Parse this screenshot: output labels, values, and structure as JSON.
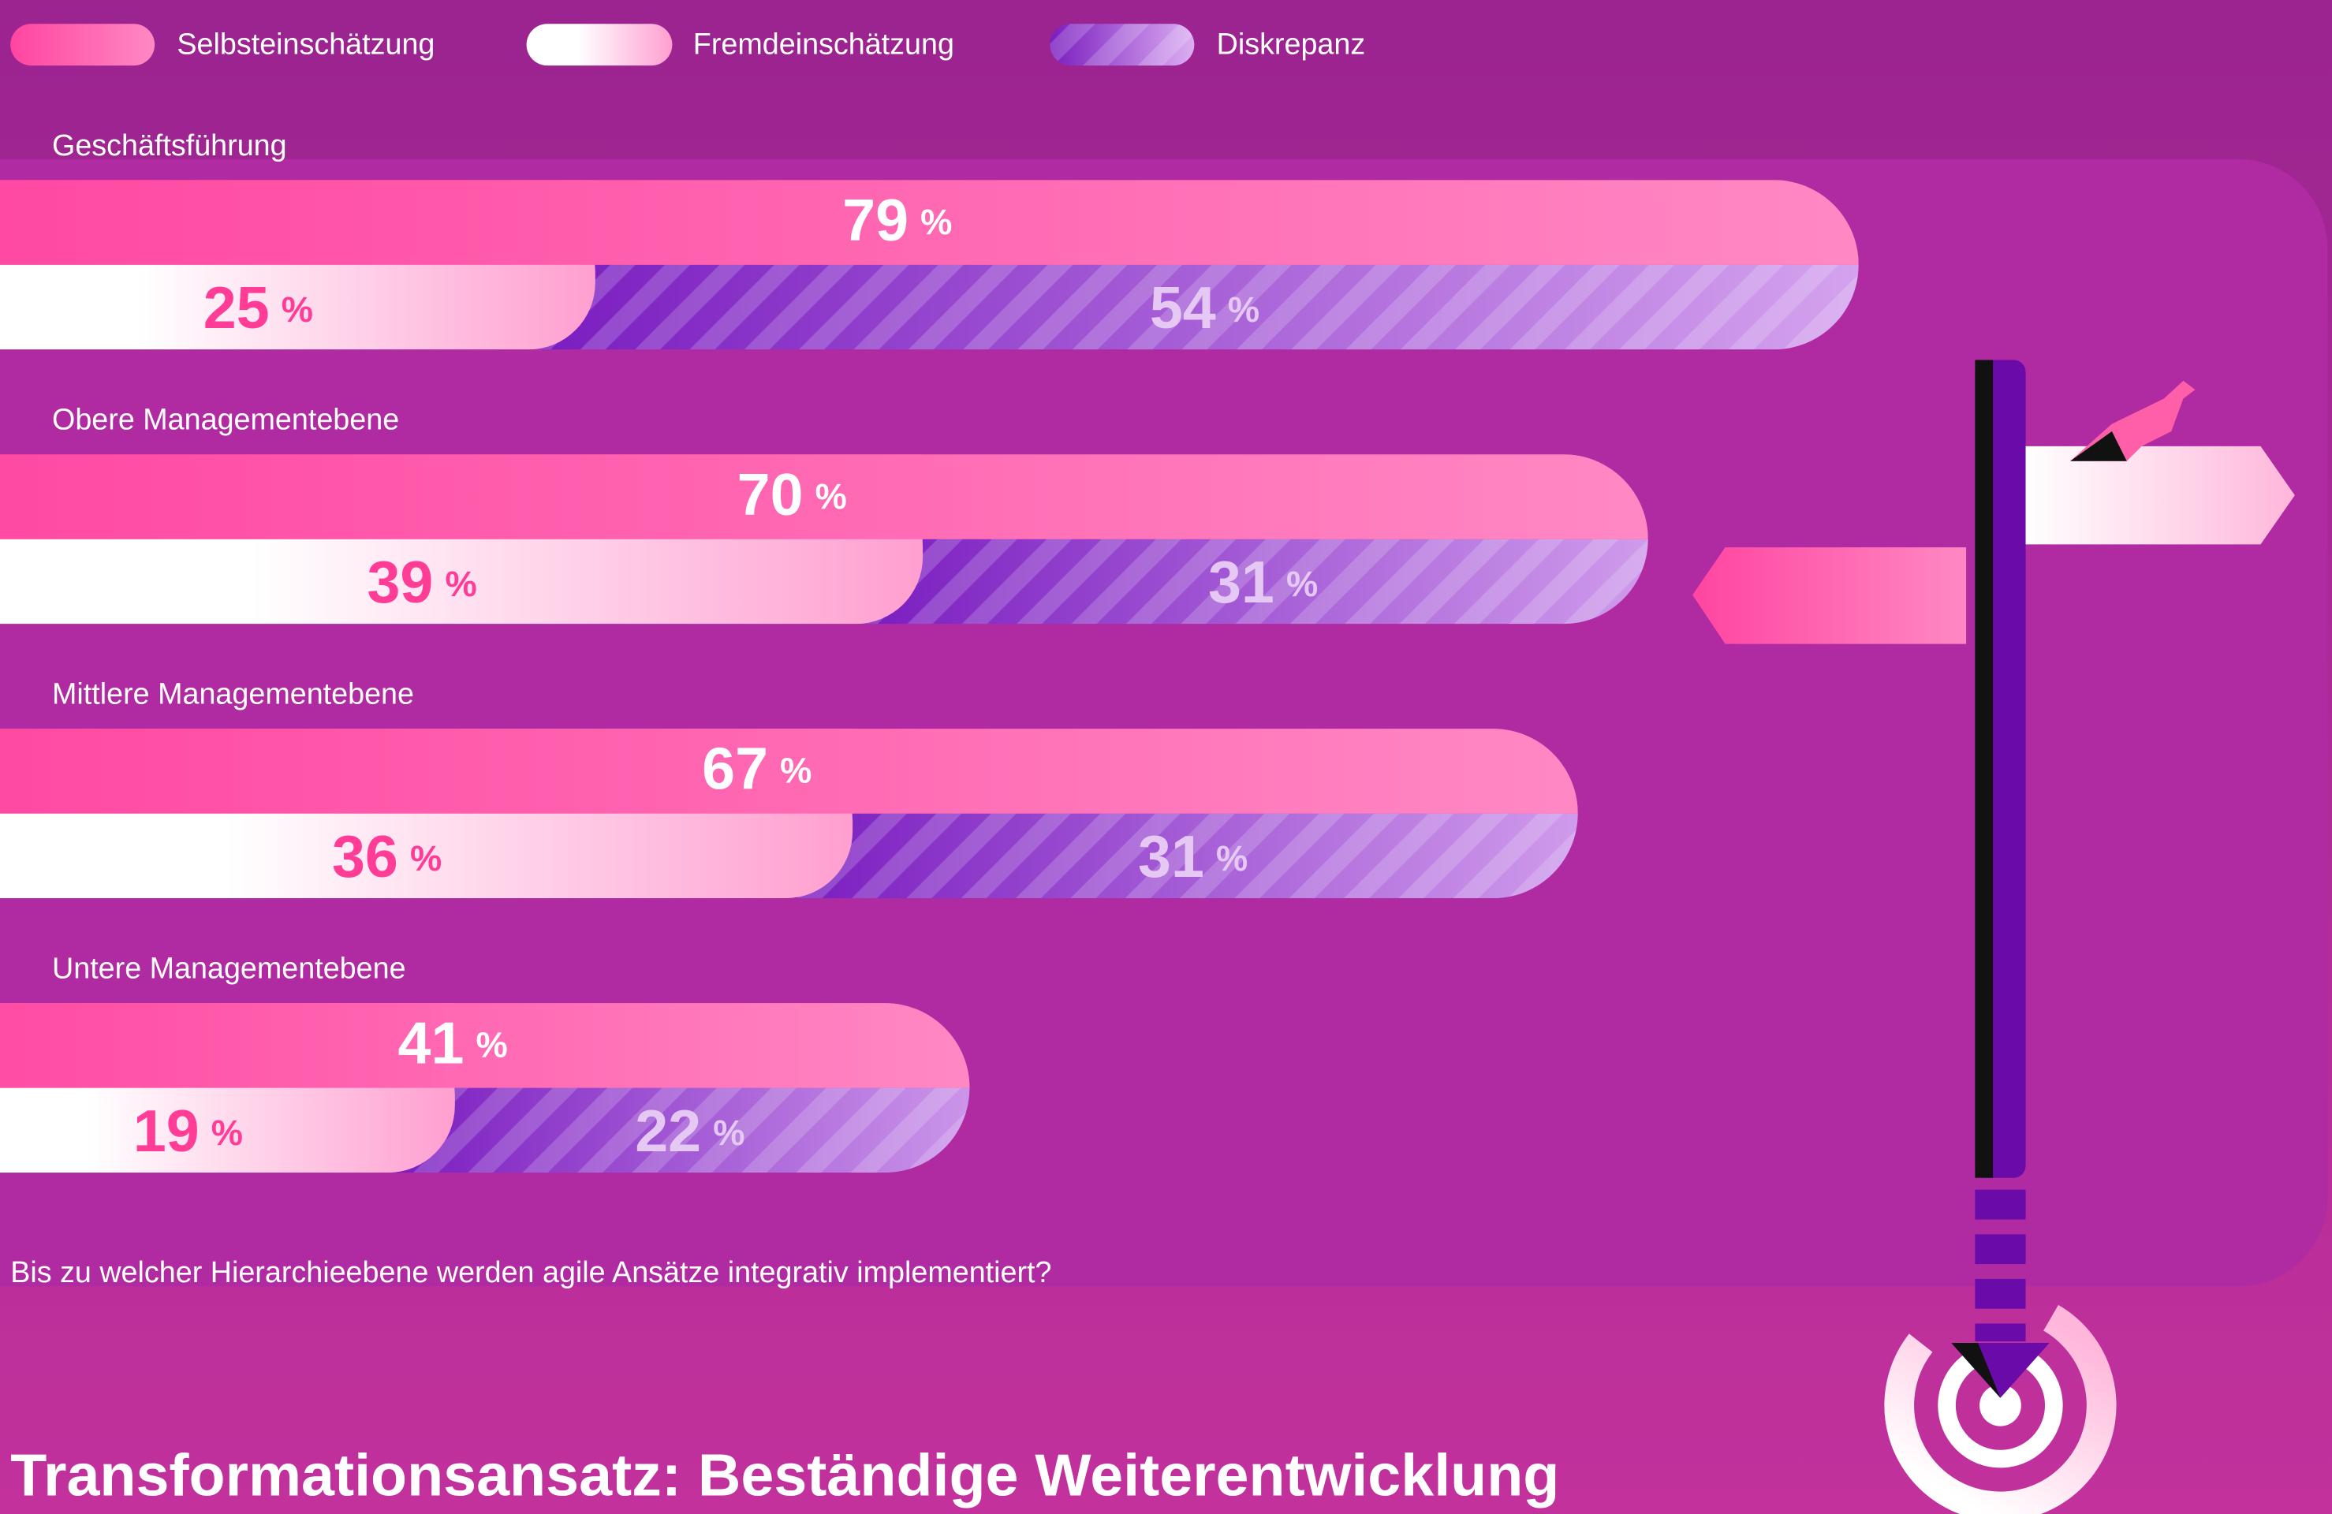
{
  "chart_data": {
    "type": "bar",
    "title": "Transformationsansatz: Beständige Weiterentwicklung",
    "subtitle": "Bis zu welcher Hierarchieebene werden agile Ansätze integrativ implementiert?",
    "unit": "%",
    "categories": [
      "Geschäftsführung",
      "Obere Managementebene",
      "Mittlere Managementebene",
      "Untere Managementebene"
    ],
    "series": [
      {
        "name": "Selbsteinschätzung",
        "color": "#ff4fa0",
        "values": [
          79,
          70,
          67,
          41
        ]
      },
      {
        "name": "Fremdeinschätzung",
        "color": "#ffffff",
        "values": [
          25,
          39,
          36,
          19
        ]
      },
      {
        "name": "Diskrepanz",
        "color": "#7a1fc0",
        "values": [
          54,
          31,
          31,
          22
        ]
      }
    ]
  }
}
